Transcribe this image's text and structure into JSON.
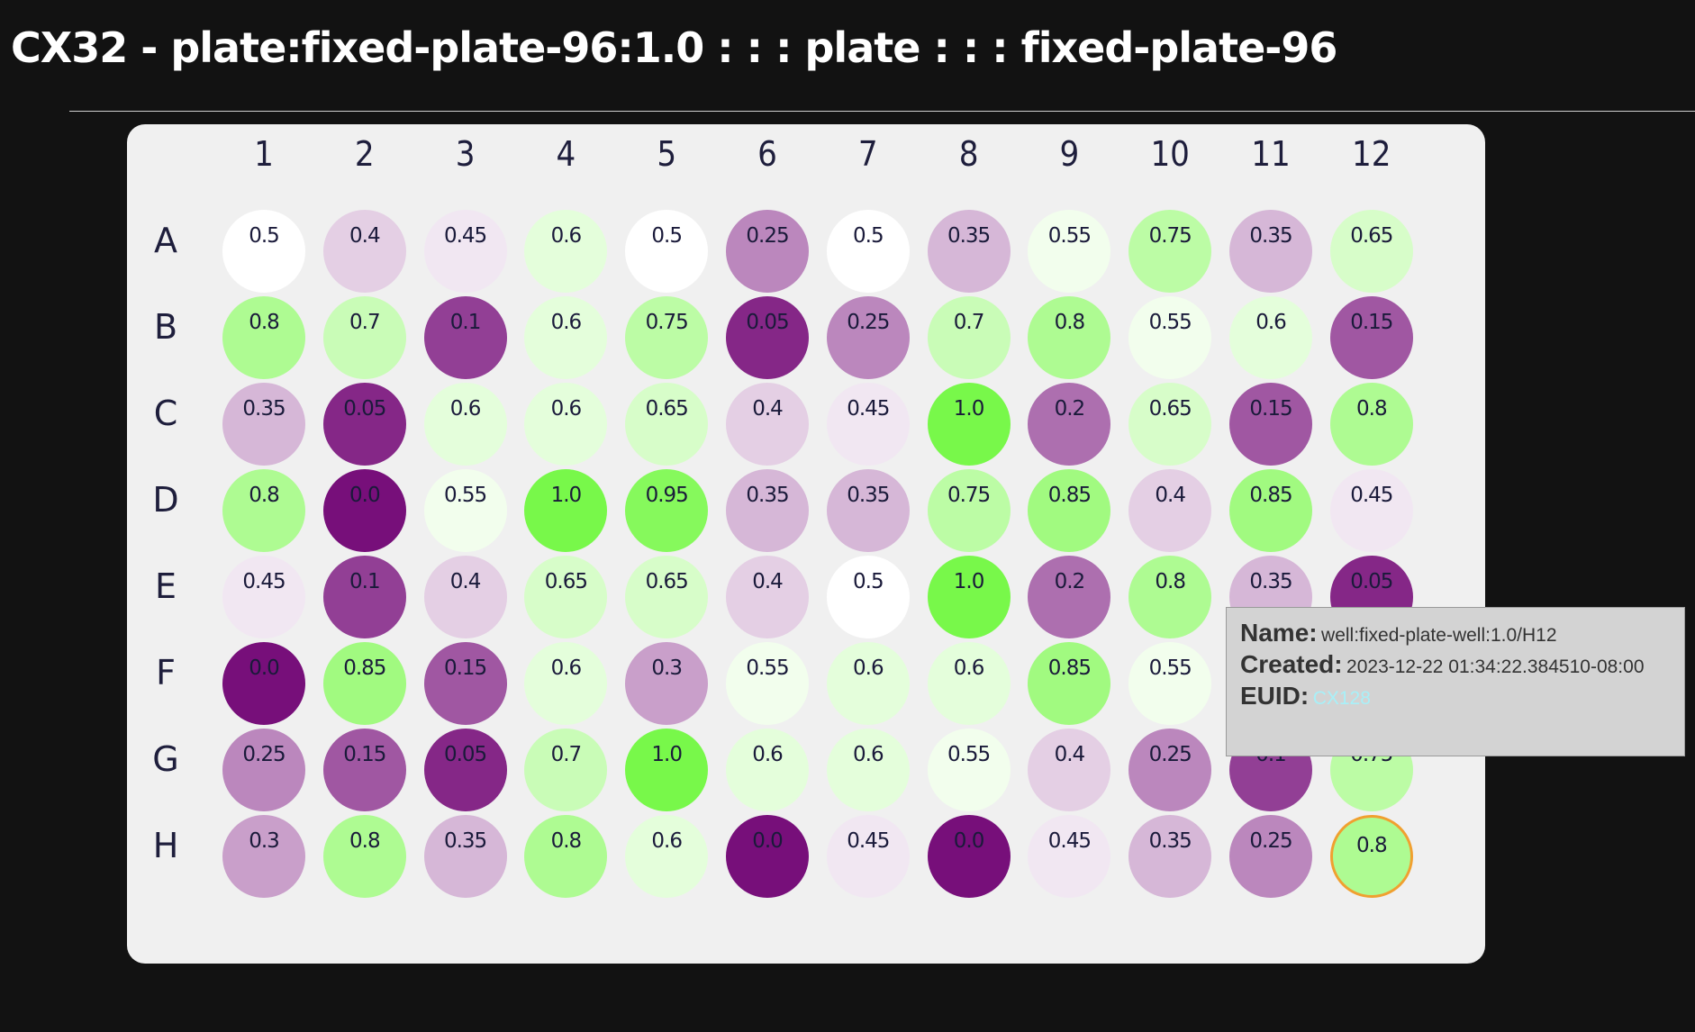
{
  "page": {
    "title": "CX32 - plate:fixed-plate-96:1.0 : : : plate : : : fixed-plate-96"
  },
  "plate": {
    "columns": [
      "1",
      "2",
      "3",
      "4",
      "5",
      "6",
      "7",
      "8",
      "9",
      "10",
      "11",
      "12"
    ],
    "rows": [
      {
        "label": "A",
        "values": [
          "0.5",
          "0.4",
          "0.45",
          "0.6",
          "0.5",
          "0.25",
          "0.5",
          "0.35",
          "0.55",
          "0.75",
          "0.35",
          "0.65"
        ]
      },
      {
        "label": "B",
        "values": [
          "0.8",
          "0.7",
          "0.1",
          "0.6",
          "0.75",
          "0.05",
          "0.25",
          "0.7",
          "0.8",
          "0.55",
          "0.6",
          "0.15"
        ]
      },
      {
        "label": "C",
        "values": [
          "0.35",
          "0.05",
          "0.6",
          "0.6",
          "0.65",
          "0.4",
          "0.45",
          "1.0",
          "0.2",
          "0.65",
          "0.15",
          "0.8"
        ]
      },
      {
        "label": "D",
        "values": [
          "0.8",
          "0.0",
          "0.55",
          "1.0",
          "0.95",
          "0.35",
          "0.35",
          "0.75",
          "0.85",
          "0.4",
          "0.85",
          "0.45"
        ]
      },
      {
        "label": "E",
        "values": [
          "0.45",
          "0.1",
          "0.4",
          "0.65",
          "0.65",
          "0.4",
          "0.5",
          "1.0",
          "0.2",
          "0.8",
          "0.35",
          "0.05"
        ]
      },
      {
        "label": "F",
        "values": [
          "0.0",
          "0.85",
          "0.15",
          "0.6",
          "0.3",
          "0.55",
          "0.6",
          "0.6",
          "0.85",
          "0.55",
          "",
          ""
        ]
      },
      {
        "label": "G",
        "values": [
          "0.25",
          "0.15",
          "0.05",
          "0.7",
          "1.0",
          "0.6",
          "0.6",
          "0.55",
          "0.4",
          "0.25",
          "0.1",
          "0.75"
        ]
      },
      {
        "label": "H",
        "values": [
          "0.3",
          "0.8",
          "0.35",
          "0.8",
          "0.6",
          "0.0",
          "0.45",
          "0.0",
          "0.45",
          "0.35",
          "0.25",
          "0.8"
        ]
      }
    ],
    "selected_well": {
      "row": 7,
      "col": 11
    },
    "colors": {
      "low": "#770f7a",
      "mid": "#ffffff",
      "high": "#78f84a",
      "selected_border": "#f0a030",
      "background": "#f0f0f0"
    }
  },
  "tooltip": {
    "name_label": "Name:",
    "name_value": "well:fixed-plate-well:1.0/H12",
    "created_label": "Created:",
    "created_value": "2023-12-22 01:34:22.384510-08:00",
    "euid_label": "EUID:",
    "euid_value": "CX128"
  }
}
